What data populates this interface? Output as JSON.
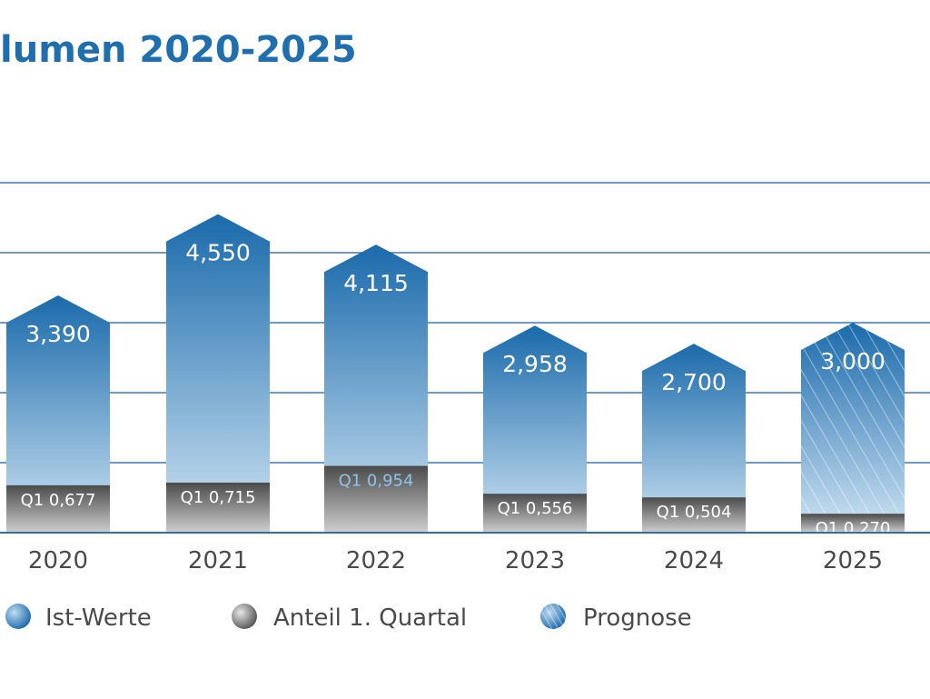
{
  "chart_data": {
    "type": "bar",
    "title": "lumen 2020-2025",
    "categories": [
      "2020",
      "2021",
      "2022",
      "2023",
      "2024",
      "2025"
    ],
    "series": [
      {
        "name": "Ist-Werte",
        "values": [
          3.39,
          4.55,
          4.115,
          2.958,
          2.7,
          3.0
        ]
      },
      {
        "name": "Anteil 1. Quartal",
        "values": [
          0.677,
          0.715,
          0.954,
          0.556,
          0.504,
          0.27
        ]
      }
    ],
    "value_labels": [
      "3,390",
      "4,550",
      "4,115",
      "2,958",
      "2,700",
      "3,000"
    ],
    "q1_labels": [
      "Q1 0,677",
      "Q1 0,715",
      "Q1 0,954",
      "Q1 0,556",
      "Q1 0,504",
      "Q1 0,270"
    ],
    "forecast": [
      false,
      false,
      false,
      false,
      false,
      true
    ],
    "legend": [
      "Ist-Werte",
      "Anteil 1. Quartal",
      "Prognose"
    ],
    "ylim": [
      0,
      5
    ],
    "gridlines": [
      0,
      1,
      2,
      3,
      4,
      5
    ],
    "grid": true,
    "legend_position": "bottom",
    "colors": {
      "title": "#1f6fae",
      "bar_top": "#1a6aab",
      "bar_bottom": "#cfe4f3",
      "q1_top": "#4b4b4b",
      "q1_bottom": "#c9c9c9",
      "grid": "#3f78b0",
      "axis": "#2f6fa8",
      "text": "#4a4a4a"
    }
  }
}
